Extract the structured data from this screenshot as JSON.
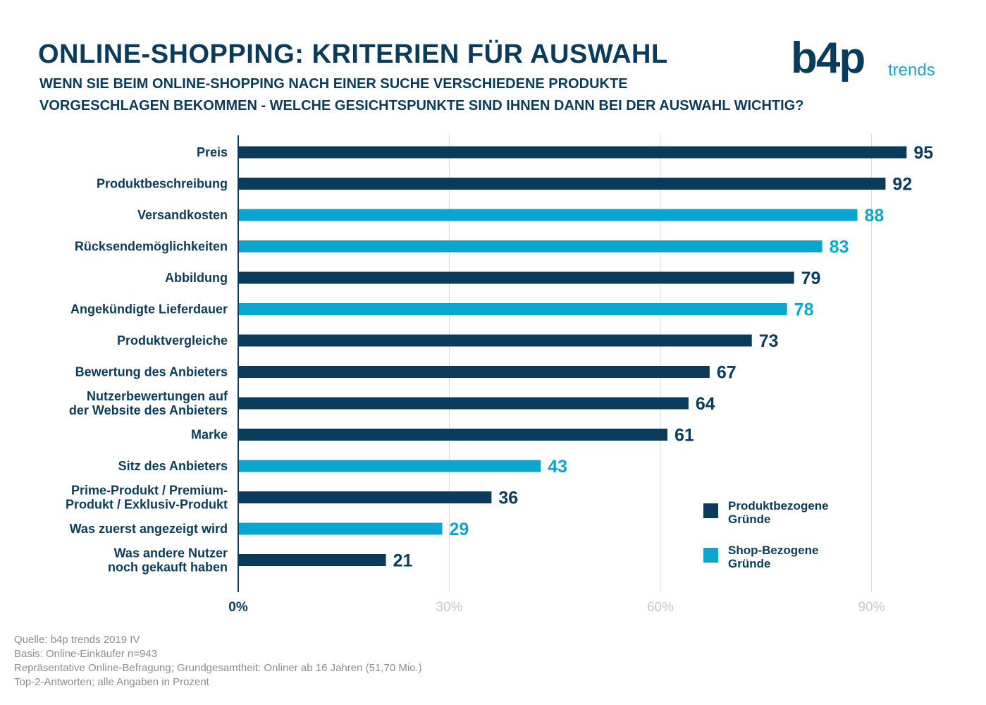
{
  "header": {
    "title": "ONLINE-SHOPPING: KRITERIEN FÜR AUSWAHL",
    "subtitle_line1": "WENN SIE BEIM ONLINE-SHOPPING NACH EINER SUCHE VERSCHIEDENE PRODUKTE",
    "subtitle_line2": "VORGESCHLAGEN BEKOMMEN - WELCHE GESICHTSPUNKTE SIND IHNEN DANN BEI DER AUSWAHL WICHTIG?"
  },
  "logo": {
    "brand": "b4p",
    "suffix": "trends"
  },
  "colors": {
    "product": "#0b3b5a",
    "shop": "#0aa6cf",
    "grid": "#d9d9d9",
    "tick_muted": "#c8c8c8"
  },
  "chart_data": {
    "type": "bar",
    "orientation": "horizontal",
    "categories": [
      [
        "Preis"
      ],
      [
        "Produktbeschreibung"
      ],
      [
        "Versandkosten"
      ],
      [
        "Rücksendemöglichkeiten"
      ],
      [
        "Abbildung"
      ],
      [
        "Angekündigte Lieferdauer"
      ],
      [
        "Produktvergleiche"
      ],
      [
        "Bewertung des Anbieters"
      ],
      [
        "Nutzerbewertungen auf",
        "der Website des Anbieters"
      ],
      [
        "Marke"
      ],
      [
        "Sitz des Anbieters"
      ],
      [
        "Prime-Produkt / Premium-",
        "Produkt / Exklusiv-Produkt"
      ],
      [
        "Was zuerst angezeigt wird"
      ],
      [
        "Was andere Nutzer",
        "noch gekauft haben"
      ]
    ],
    "values": [
      95,
      92,
      88,
      83,
      79,
      78,
      73,
      67,
      64,
      61,
      43,
      36,
      29,
      21
    ],
    "groups": [
      "product",
      "product",
      "shop",
      "shop",
      "product",
      "shop",
      "product",
      "product",
      "product",
      "product",
      "shop",
      "product",
      "shop",
      "product"
    ],
    "xlim": [
      0,
      100
    ],
    "xticks": [
      0,
      30,
      60,
      90
    ],
    "xtick_labels": [
      "0%",
      "30%",
      "60%",
      "90%"
    ],
    "grid": true,
    "legend": {
      "placement": "bottom-right",
      "entries": [
        {
          "key": "product",
          "label": [
            "Produktbezogene",
            "Gründe"
          ]
        },
        {
          "key": "shop",
          "label": [
            "Shop-Bezogene",
            "Gründe"
          ]
        }
      ]
    }
  },
  "footnotes": [
    "Quelle: b4p trends 2019 IV",
    "Basis: Online-Einkäufer n=943",
    "Repräsentative Online-Befragung; Grundgesamtheit: Onliner ab 16 Jahren (51,70 Mio.)",
    "Top-2-Antworten; alle Angaben in Prozent"
  ]
}
